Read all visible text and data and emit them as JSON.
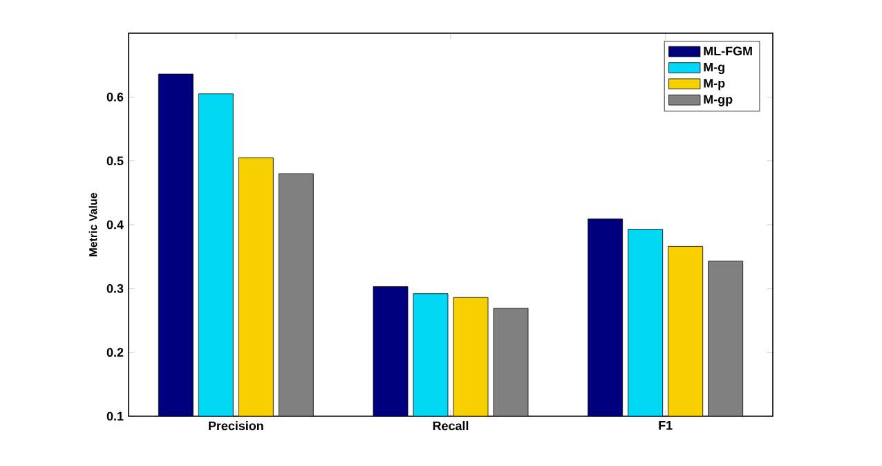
{
  "chart_data": {
    "type": "bar",
    "ylabel": "Metric Value",
    "categories": [
      "Precision",
      "Recall",
      "F1"
    ],
    "series": [
      {
        "name": "ML-FGM",
        "color": "#00007f",
        "values": [
          0.636,
          0.303,
          0.409
        ]
      },
      {
        "name": "M-g",
        "color": "#00d8f5",
        "values": [
          0.605,
          0.292,
          0.393
        ]
      },
      {
        "name": "M-p",
        "color": "#f8d000",
        "values": [
          0.505,
          0.286,
          0.366
        ]
      },
      {
        "name": "M-gp",
        "color": "#808080",
        "values": [
          0.48,
          0.269,
          0.343
        ]
      }
    ],
    "ylim": [
      0.1,
      0.7
    ],
    "yticks": [
      0.1,
      0.2,
      0.3,
      0.4,
      0.5,
      0.6
    ],
    "legend": "top right"
  }
}
